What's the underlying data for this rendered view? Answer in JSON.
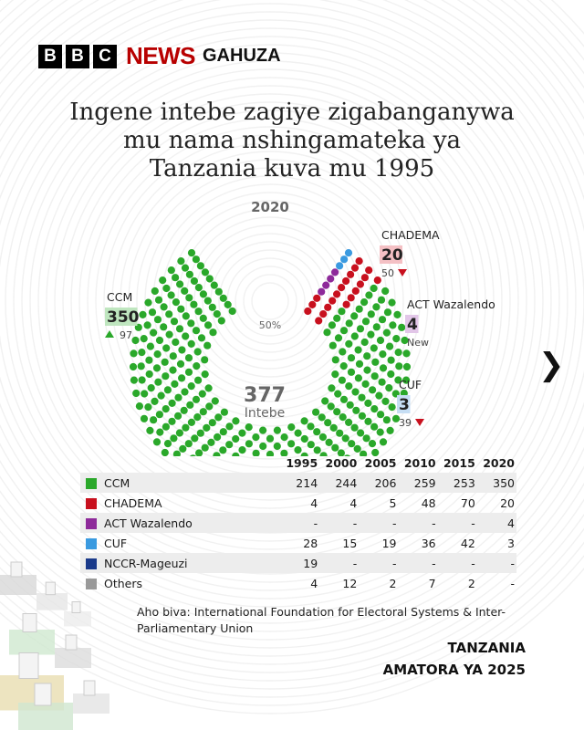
{
  "brand": {
    "letters": [
      "B",
      "B",
      "C"
    ],
    "news": "NEWS",
    "service": "GAHUZA"
  },
  "title_lines": [
    "Ingene intebe zagiye zigabanganywa",
    "mu nama nshingamateka ya",
    "Tanzania kuva mu 1995"
  ],
  "chart_data": {
    "type": "parliament",
    "year": "2020",
    "total": 377,
    "total_label": "Intebe",
    "pct_label": "50%",
    "parties": [
      {
        "name": "CCM",
        "seats": 350,
        "color": "#2aa82a",
        "label_bg": "#bfe6bf",
        "change_dir": "up",
        "change": "97"
      },
      {
        "name": "CHADEMA",
        "seats": 20,
        "color": "#c8101e",
        "label_bg": "#f4c0c4",
        "change_dir": "down",
        "change": "50"
      },
      {
        "name": "ACT Wazalendo",
        "seats": 4,
        "color": "#8e2a9a",
        "label_bg": "#e2c6e8",
        "change_dir": "none",
        "change": "New"
      },
      {
        "name": "CUF",
        "seats": 3,
        "color": "#3a9ae0",
        "label_bg": "#c6def4",
        "change_dir": "down",
        "change": "39"
      }
    ],
    "table": {
      "years": [
        "1995",
        "2000",
        "2005",
        "2010",
        "2015",
        "2020"
      ],
      "rows": [
        {
          "name": "CCM",
          "color": "#2aa82a",
          "values": [
            "214",
            "244",
            "206",
            "259",
            "253",
            "350"
          ]
        },
        {
          "name": "CHADEMA",
          "color": "#c8101e",
          "values": [
            "4",
            "4",
            "5",
            "48",
            "70",
            "20"
          ]
        },
        {
          "name": "ACT Wazalendo",
          "color": "#8e2a9a",
          "values": [
            "-",
            "-",
            "-",
            "-",
            "-",
            "4"
          ]
        },
        {
          "name": "CUF",
          "color": "#3a9ae0",
          "values": [
            "28",
            "15",
            "19",
            "36",
            "42",
            "3"
          ]
        },
        {
          "name": "NCCR-Mageuzi",
          "color": "#1a3a8a",
          "values": [
            "19",
            "-",
            "-",
            "-",
            "-",
            "-"
          ]
        },
        {
          "name": "Others",
          "color": "#999999",
          "values": [
            "4",
            "12",
            "2",
            "7",
            "2",
            "-"
          ]
        }
      ]
    }
  },
  "source_text": "Aho biva: International Foundation for Electoral Systems & Inter-Parliamentary Union",
  "footer": {
    "line1": "TANZANIA",
    "line2": "AMATORA YA 2025"
  },
  "colors": {
    "up": "#2aa82a",
    "down": "#c8101e",
    "brand_red": "#b80000"
  }
}
